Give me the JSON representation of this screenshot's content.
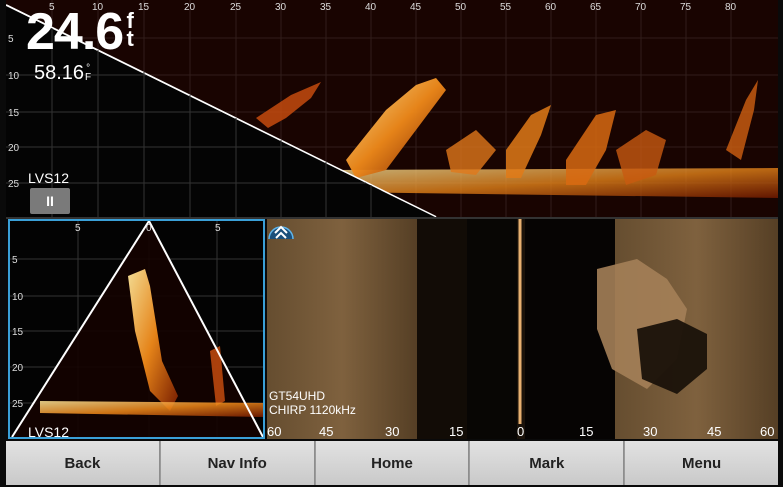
{
  "top_panel": {
    "depth_value": "24.6",
    "depth_unit_top": "f",
    "depth_unit_bottom": "t",
    "temperature_value": "58.16",
    "temp_unit_top": "°",
    "temp_unit_bottom": "F",
    "mode_label": "LVS12",
    "pause_label": "II",
    "top_scale": [
      "5",
      "10",
      "15",
      "20",
      "25",
      "30",
      "35",
      "40",
      "45",
      "50",
      "55",
      "60",
      "65",
      "70",
      "75",
      "80"
    ],
    "left_scale": [
      "5",
      "10",
      "15",
      "20",
      "25"
    ]
  },
  "bottom_left_panel": {
    "mode_label": "LVS12",
    "top_scale": [
      "5",
      "0",
      "5"
    ],
    "left_scale": [
      "5",
      "10",
      "15",
      "20",
      "25"
    ]
  },
  "side_panel": {
    "transducer": "GT54UHD",
    "frequency": "CHIRP 1120kHz",
    "range_scale": [
      "60",
      "45",
      "30",
      "15",
      "0",
      "15",
      "30",
      "45",
      "60"
    ]
  },
  "buttons": {
    "back": "Back",
    "nav_info": "Nav Info",
    "home": "Home",
    "mark": "Mark",
    "menu": "Menu"
  },
  "colors": {
    "accent_border": "#3aa0d8",
    "sonar_hot": "#ffcf5a",
    "sonar_mid": "#e06a10",
    "sonar_dark": "#5a1500"
  }
}
